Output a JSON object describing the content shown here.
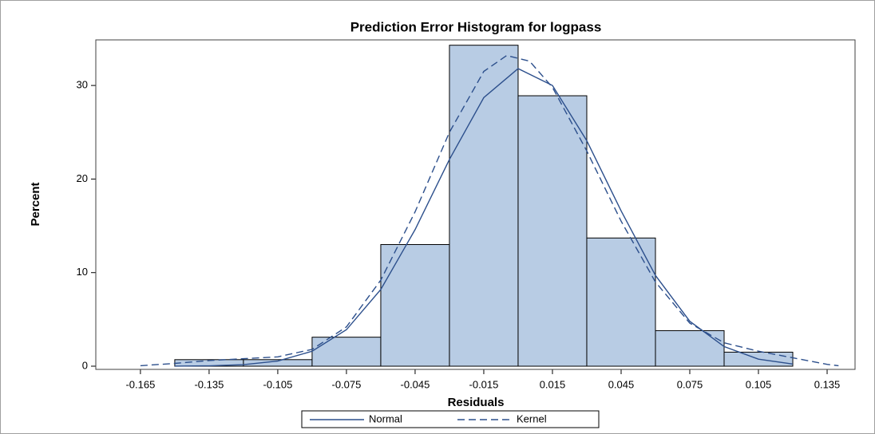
{
  "chart_data": {
    "type": "histogram",
    "title": "Prediction Error Histogram for logpass",
    "x_label": "Residuals",
    "y_label": "Percent",
    "bins": [
      -0.15,
      -0.12,
      -0.09,
      -0.06,
      -0.03,
      0,
      0.03,
      0.06,
      0.09,
      0.12
    ],
    "values": [
      0.7,
      0.7,
      3.1,
      13.0,
      34.3,
      28.9,
      13.7,
      3.8,
      1.5
    ],
    "color": "#b8cce4",
    "edge_color": "#000000",
    "xlim": [
      -0.1845,
      0.1472
    ],
    "ylim": [
      -0.34,
      34.87
    ],
    "xticks": [
      -0.165,
      -0.135,
      -0.105,
      -0.075,
      -0.045,
      -0.015,
      0.015,
      0.045,
      0.075,
      0.105,
      0.135
    ],
    "yticks": [
      0,
      10,
      20,
      30
    ],
    "series": [
      {
        "name": "Normal",
        "color": "#2c4f8c",
        "style": "solid",
        "x": [
          -0.15,
          -0.135,
          -0.12,
          -0.105,
          -0.09,
          -0.075,
          -0.06,
          -0.045,
          -0.03,
          -0.015,
          0,
          0.015,
          0.03,
          0.045,
          0.06,
          0.075,
          0.09,
          0.105,
          0.12
        ],
        "values": [
          0.01,
          0.04,
          0.17,
          0.55,
          1.6,
          3.9,
          8.2,
          14.6,
          22.1,
          28.7,
          31.8,
          30.0,
          24.1,
          16.6,
          9.7,
          4.8,
          2.1,
          0.75,
          0.23
        ]
      },
      {
        "name": "Kernel",
        "color": "#2c4f8c",
        "style": "dashed",
        "x": [
          -0.165,
          -0.15,
          -0.135,
          -0.12,
          -0.105,
          -0.09,
          -0.075,
          -0.06,
          -0.045,
          -0.03,
          -0.015,
          -0.005,
          0.005,
          0.015,
          0.03,
          0.045,
          0.06,
          0.075,
          0.09,
          0.105,
          0.12,
          0.135,
          0.14
        ],
        "values": [
          0.05,
          0.3,
          0.6,
          0.8,
          1.0,
          1.8,
          4.2,
          9.2,
          16.5,
          25.0,
          31.5,
          33.2,
          32.6,
          29.8,
          23.0,
          15.5,
          9.0,
          4.6,
          2.5,
          1.6,
          0.9,
          0.2,
          0.05
        ]
      }
    ],
    "legend": "bottom"
  }
}
